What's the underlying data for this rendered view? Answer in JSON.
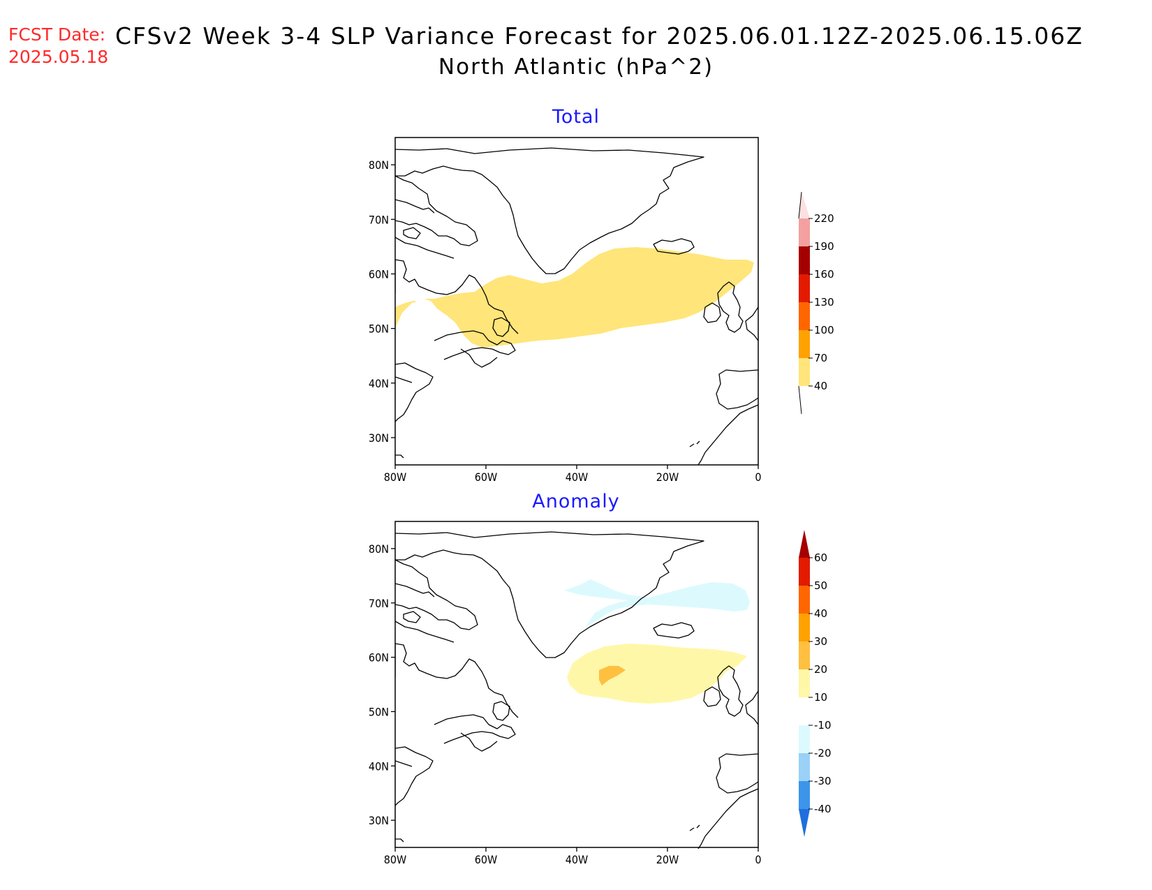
{
  "header": {
    "fcst_label": "FCST Date:",
    "fcst_date": "2025.05.18",
    "title": "CFSv2 Week 3-4 SLP Variance Forecast for 2025.06.01.12Z-2025.06.15.06Z",
    "subtitle": "North Atlantic (hPa^2)"
  },
  "axes": {
    "lat_labels": [
      "80N",
      "70N",
      "60N",
      "50N",
      "40N",
      "30N"
    ],
    "lon_labels": [
      "80W",
      "60W",
      "40W",
      "20W",
      "0"
    ],
    "lat_range": [
      25,
      85
    ],
    "lon_range": [
      -80,
      0
    ]
  },
  "panels": [
    {
      "title": "Total",
      "colorbar": {
        "levels": [
          "40",
          "70",
          "100",
          "130",
          "160",
          "190",
          "220"
        ],
        "colors": [
          "#ffe57a",
          "#ffa100",
          "#ff6600",
          "#e41a00",
          "#a50000",
          "#f4a0a0",
          "#fde0e0"
        ]
      },
      "shaded_regions": [
        {
          "level": "40-70",
          "color": "#ffe57a",
          "description_values": "40 to 70 hPa^2"
        }
      ]
    },
    {
      "title": "Anomaly",
      "colorbar": {
        "levels": [
          "60",
          "50",
          "40",
          "30",
          "20",
          "10",
          "-10",
          "-20",
          "-30",
          "-40"
        ],
        "colors": [
          "#a50000",
          "#e41a00",
          "#ff6600",
          "#ffa100",
          "#ffbf40",
          "#fff7a8",
          "#ffffff",
          "#dcfafe",
          "#99d1f7",
          "#3c95eb",
          "#1e6fde"
        ]
      },
      "shaded_regions": [
        {
          "level": "-20 to -10",
          "color": "#dcfafe"
        },
        {
          "level": "10 to 20",
          "color": "#fff7a8"
        },
        {
          "level": "20 to 30",
          "color": "#ffbf40"
        }
      ]
    }
  ]
}
